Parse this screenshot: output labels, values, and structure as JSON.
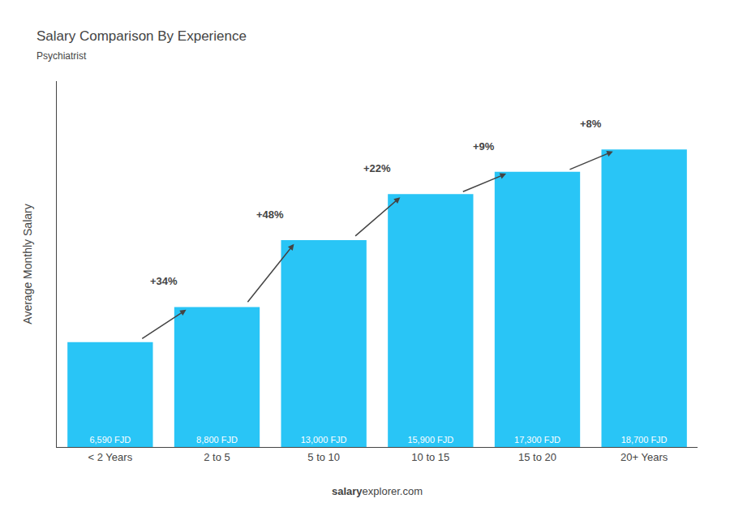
{
  "chart_data": {
    "type": "bar",
    "title": "Salary Comparison By Experience",
    "subtitle": "Psychiatrist",
    "ylabel": "Average Monthly Salary",
    "categories": [
      "< 2 Years",
      "2 to 5",
      "5 to 10",
      "10 to 15",
      "15 to 20",
      "20+ Years"
    ],
    "values": [
      6590,
      8800,
      13000,
      15900,
      17300,
      18700
    ],
    "value_labels": [
      "6,590 FJD",
      "8,800 FJD",
      "13,000 FJD",
      "15,900 FJD",
      "17,300 FJD",
      "18,700 FJD"
    ],
    "data_labels": true,
    "color": "#29c5f6",
    "annotations": [
      "+34%",
      "+48%",
      "+22%",
      "+9%",
      "+8%"
    ],
    "footer": [
      "salary",
      "explorer.com"
    ],
    "ylim": [
      0,
      23000
    ],
    "tick_labels": "x",
    "grid": false
  }
}
